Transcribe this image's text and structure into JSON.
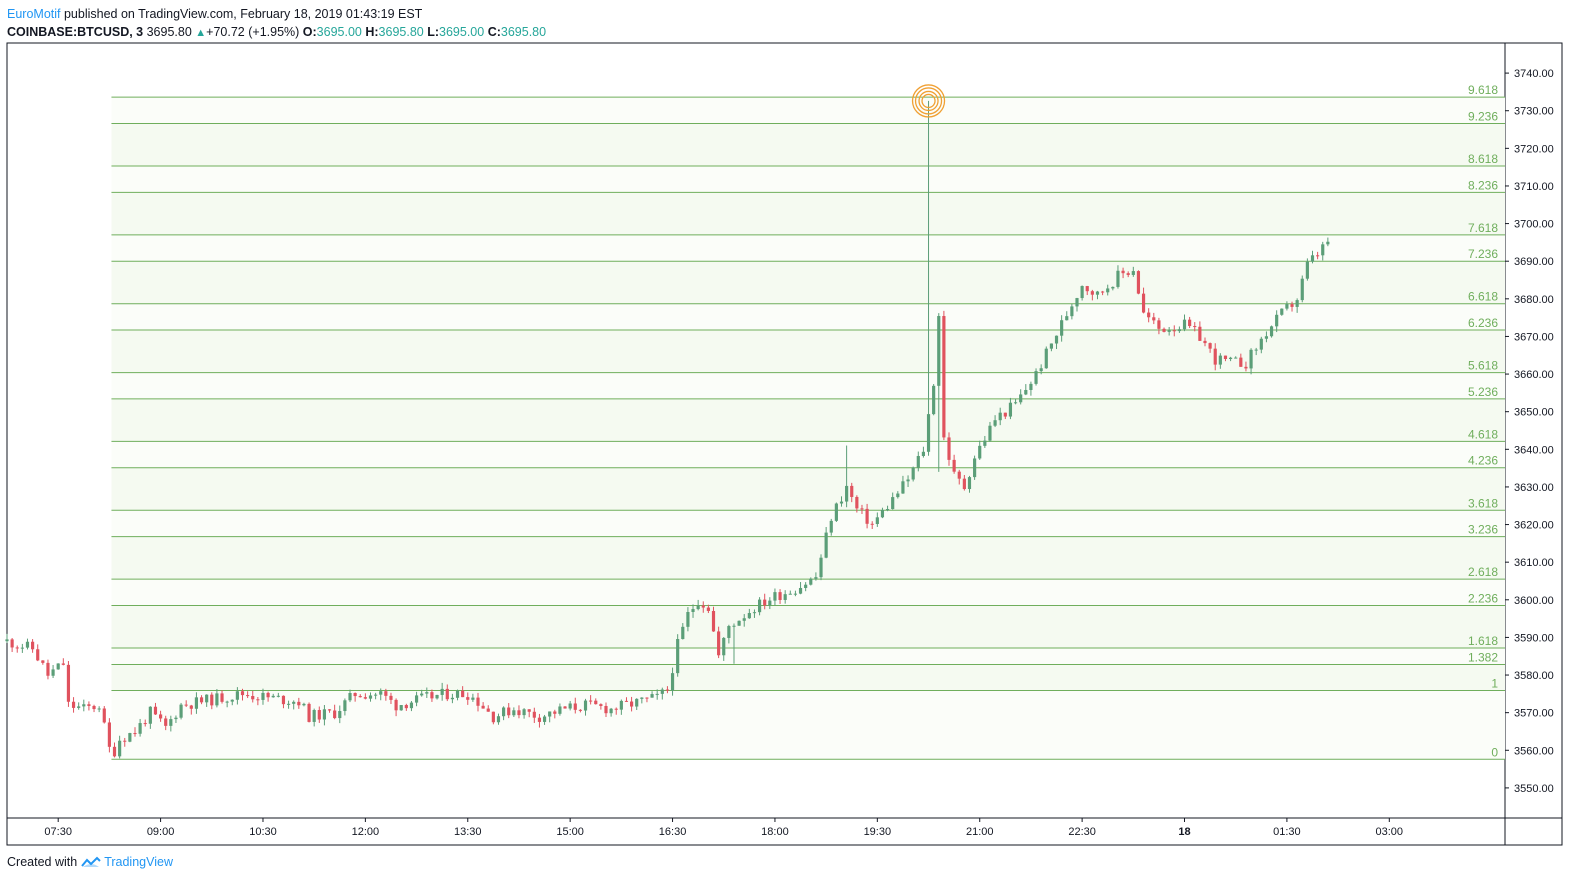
{
  "header": {
    "author": "EuroMotif",
    "published_text": "published on TradingView.com, February 18, 2019 01:43:19 EST",
    "symbol": "COINBASE:BTCUSD, 3",
    "last_price": "3695.80",
    "change": "+70.72 (+1.95%)",
    "open_label": "O:",
    "open_value": "3695.00",
    "high_label": "H:",
    "high_value": "3695.80",
    "low_label": "L:",
    "low_value": "3695.00",
    "close_label": "C:",
    "close_value": "3695.80"
  },
  "footer": {
    "created_with": "Created with",
    "brand": "TradingView"
  },
  "colors": {
    "up": "#26a69a",
    "down": "#ef5350",
    "candle_up": "#5b9e78",
    "candle_down": "#e0525e",
    "fib_line": "#6fae5c",
    "fib_label": "#6fae5c",
    "fib_fill_a": "#f5faf1",
    "fib_fill_b": "#fbfdf9",
    "target": "#f0a033",
    "brand": "#2196f3"
  },
  "chart_data": {
    "type": "candlestick",
    "y_range": [
      3542,
      3748
    ],
    "y_ticks": [
      "3740.00",
      "3730.00",
      "3720.00",
      "3710.00",
      "3700.00",
      "3690.00",
      "3680.00",
      "3670.00",
      "3660.00",
      "3650.00",
      "3640.00",
      "3630.00",
      "3620.00",
      "3610.00",
      "3600.00",
      "3590.00",
      "3580.00",
      "3570.00",
      "3560.00",
      "3550.00"
    ],
    "x_labels": [
      {
        "t": 0.5,
        "label": "07:30",
        "bold": false
      },
      {
        "t": 1.5,
        "label": "09:00",
        "bold": false
      },
      {
        "t": 2.5,
        "label": "10:30",
        "bold": false
      },
      {
        "t": 3.5,
        "label": "12:00",
        "bold": false
      },
      {
        "t": 4.5,
        "label": "13:30",
        "bold": false
      },
      {
        "t": 5.5,
        "label": "15:00",
        "bold": false
      },
      {
        "t": 6.5,
        "label": "16:30",
        "bold": false
      },
      {
        "t": 7.5,
        "label": "18:00",
        "bold": false
      },
      {
        "t": 8.5,
        "label": "19:30",
        "bold": false
      },
      {
        "t": 9.5,
        "label": "21:00",
        "bold": false
      },
      {
        "t": 10.5,
        "label": "22:30",
        "bold": false
      },
      {
        "t": 11.5,
        "label": "18",
        "bold": true
      },
      {
        "t": 12.5,
        "label": "01:30",
        "bold": false
      },
      {
        "t": 13.5,
        "label": "03:00",
        "bold": false
      }
    ],
    "x_domain": [
      0,
      14.63
    ],
    "fib_levels": [
      {
        "ratio": "0",
        "price": 3557.6
      },
      {
        "ratio": "1",
        "price": 3575.9
      },
      {
        "ratio": "1.382",
        "price": 3582.8
      },
      {
        "ratio": "1.618",
        "price": 3587.2
      },
      {
        "ratio": "2.236",
        "price": 3598.5
      },
      {
        "ratio": "2.618",
        "price": 3605.5
      },
      {
        "ratio": "3.236",
        "price": 3616.8
      },
      {
        "ratio": "3.618",
        "price": 3623.8
      },
      {
        "ratio": "4.236",
        "price": 3635.1
      },
      {
        "ratio": "4.618",
        "price": 3642.1
      },
      {
        "ratio": "5.236",
        "price": 3653.4
      },
      {
        "ratio": "5.618",
        "price": 3660.4
      },
      {
        "ratio": "6.236",
        "price": 3671.7
      },
      {
        "ratio": "6.618",
        "price": 3678.7
      },
      {
        "ratio": "7.236",
        "price": 3690.0
      },
      {
        "ratio": "7.618",
        "price": 3697.0
      },
      {
        "ratio": "8.236",
        "price": 3708.3
      },
      {
        "ratio": "8.618",
        "price": 3715.3
      },
      {
        "ratio": "9.236",
        "price": 3726.6
      },
      {
        "ratio": "9.618",
        "price": 3733.6
      }
    ],
    "fib_start_t": 1.02,
    "target": {
      "t": 9.0,
      "price": 3732.6
    },
    "anchors": [
      [
        0.0,
        3589
      ],
      [
        0.25,
        3587
      ],
      [
        0.4,
        3580
      ],
      [
        0.55,
        3583
      ],
      [
        0.6,
        3572
      ],
      [
        0.75,
        3571
      ],
      [
        0.9,
        3572
      ],
      [
        1.02,
        3558
      ],
      [
        1.1,
        3563
      ],
      [
        1.25,
        3565
      ],
      [
        1.4,
        3570
      ],
      [
        1.55,
        3566
      ],
      [
        1.7,
        3572
      ],
      [
        1.9,
        3573
      ],
      [
        2.1,
        3574
      ],
      [
        2.3,
        3575
      ],
      [
        2.55,
        3574
      ],
      [
        2.85,
        3573
      ],
      [
        2.95,
        3569
      ],
      [
        3.2,
        3570
      ],
      [
        3.4,
        3575
      ],
      [
        3.65,
        3575
      ],
      [
        3.8,
        3572
      ],
      [
        4.1,
        3574
      ],
      [
        4.3,
        3575
      ],
      [
        4.5,
        3575
      ],
      [
        4.6,
        3573
      ],
      [
        4.75,
        3569
      ],
      [
        4.95,
        3571
      ],
      [
        5.2,
        3569
      ],
      [
        5.45,
        3571
      ],
      [
        5.65,
        3572
      ],
      [
        5.9,
        3571
      ],
      [
        6.2,
        3573
      ],
      [
        6.35,
        3574
      ],
      [
        6.45,
        3576
      ],
      [
        6.55,
        3588
      ],
      [
        6.65,
        3596
      ],
      [
        6.75,
        3600
      ],
      [
        6.85,
        3598
      ],
      [
        6.95,
        3585
      ],
      [
        7.05,
        3593
      ],
      [
        7.3,
        3598
      ],
      [
        7.5,
        3601
      ],
      [
        7.7,
        3603
      ],
      [
        7.9,
        3606
      ],
      [
        8.05,
        3622
      ],
      [
        8.2,
        3630
      ],
      [
        8.3,
        3624
      ],
      [
        8.45,
        3620
      ],
      [
        8.6,
        3625
      ],
      [
        8.8,
        3632
      ],
      [
        8.95,
        3640
      ],
      [
        9.05,
        3658
      ],
      [
        9.1,
        3676
      ],
      [
        9.15,
        3643
      ],
      [
        9.25,
        3633
      ],
      [
        9.35,
        3630
      ],
      [
        9.45,
        3638
      ],
      [
        9.65,
        3648
      ],
      [
        9.85,
        3652
      ],
      [
        10.05,
        3660
      ],
      [
        10.2,
        3668
      ],
      [
        10.35,
        3676
      ],
      [
        10.5,
        3684
      ],
      [
        10.65,
        3681
      ],
      [
        10.85,
        3686
      ],
      [
        11.0,
        3688
      ],
      [
        11.1,
        3676
      ],
      [
        11.25,
        3672
      ],
      [
        11.5,
        3673
      ],
      [
        11.65,
        3670
      ],
      [
        11.8,
        3664
      ],
      [
        11.95,
        3663
      ],
      [
        12.1,
        3663
      ],
      [
        12.3,
        3671
      ],
      [
        12.45,
        3676
      ],
      [
        12.6,
        3680
      ],
      [
        12.7,
        3689
      ],
      [
        12.8,
        3692
      ],
      [
        12.92,
        3695.8
      ]
    ],
    "events": [
      {
        "t": 9.0,
        "high": 3732.6
      },
      {
        "t": 9.1,
        "low": 3634
      },
      {
        "t": 7.1,
        "low": 3583
      },
      {
        "t": 8.2,
        "high": 3641
      }
    ]
  }
}
